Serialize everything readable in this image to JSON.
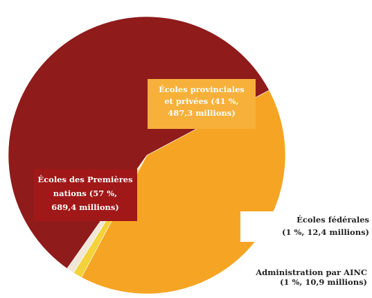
{
  "chart_data": {
    "type": "pie",
    "title": "",
    "unit": "millions",
    "slices": [
      {
        "name": "Écoles provinciales et privées",
        "percent": 41,
        "value": 487.3,
        "color": "#f5a523",
        "label_lines": [
          "Écoles provinciales",
          "et privées (41 %,",
          "487,3 millions)"
        ]
      },
      {
        "name": "Écoles fédérales",
        "percent": 1,
        "value": 12.4,
        "color": "#f3d23a",
        "label_lines": [
          "Écoles fédérales",
          "(1 %, 12,4 millions)"
        ]
      },
      {
        "name": "Administration par AINC",
        "percent": 1,
        "value": 10.9,
        "color": "#f1e7d8",
        "label_lines": [
          "Administration par AINC",
          "(1 %, 10,9 millions)"
        ]
      },
      {
        "name": "Écoles des Premières nations",
        "percent": 57,
        "value": 689.4,
        "color": "#8f1b1b",
        "label_lines": [
          "Écoles des Premières",
          "nations (57 %,",
          "689,4 millions)"
        ]
      }
    ]
  }
}
